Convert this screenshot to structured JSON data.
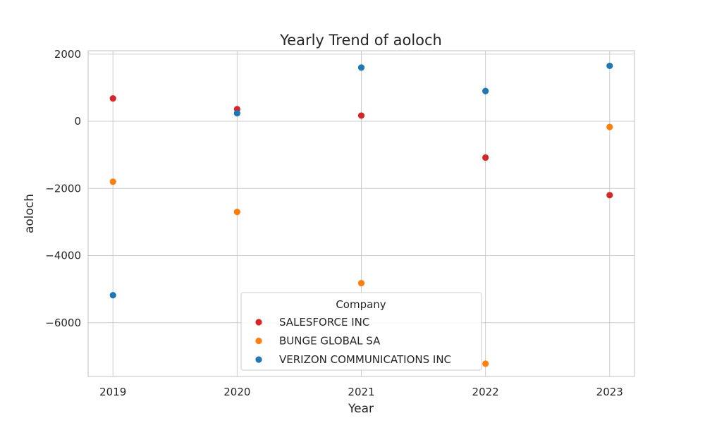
{
  "chart_data": {
    "type": "scatter",
    "title": "Yearly Trend of aoloch",
    "xlabel": "Year",
    "ylabel": "aoloch",
    "x": [
      2019,
      2020,
      2021,
      2022,
      2023
    ],
    "x_tick_labels": [
      "2019",
      "2020",
      "2021",
      "2022",
      "2023"
    ],
    "xlim": [
      2018.8,
      2023.2
    ],
    "ylim": [
      -7600,
      2100
    ],
    "y_ticks": [
      2000,
      0,
      -2000,
      -4000,
      -6000
    ],
    "y_tick_labels": [
      "2000",
      "0",
      "−2000",
      "−4000",
      "−6000"
    ],
    "grid": true,
    "legend": {
      "title": "Company",
      "placement": "lower-center"
    },
    "series": [
      {
        "name": "SALESFORCE INC",
        "color": "#d62728",
        "values": [
          680,
          360,
          170,
          -1080,
          -2200
        ]
      },
      {
        "name": "BUNGE GLOBAL SA",
        "color": "#ff7f0e",
        "values": [
          -1800,
          -2700,
          -4820,
          -7220,
          -170
        ]
      },
      {
        "name": "VERIZON COMMUNICATIONS INC",
        "color": "#1f77b4",
        "values": [
          -5180,
          240,
          1600,
          900,
          1650
        ]
      }
    ]
  }
}
